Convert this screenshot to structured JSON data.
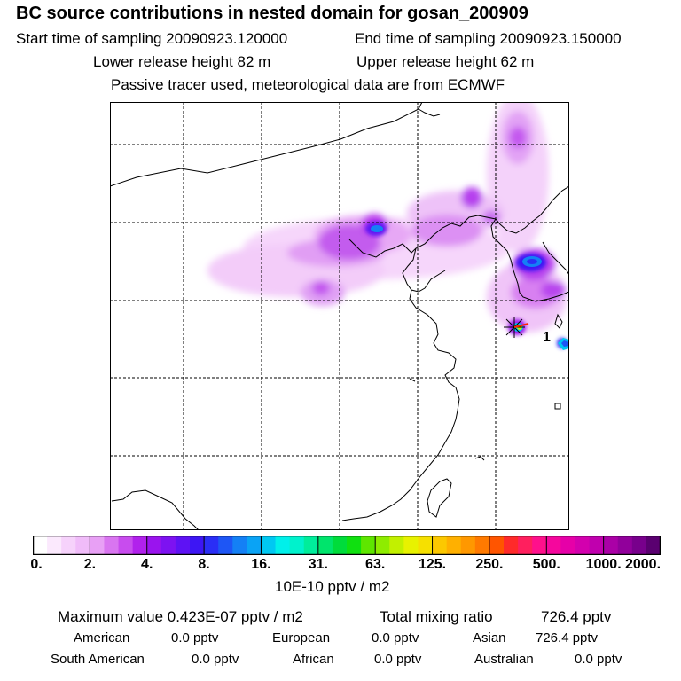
{
  "header": {
    "title": "BC  source contributions in nested domain for gosan_200909",
    "start_label": "Start time of sampling 20090923.120000",
    "end_label": "End time of sampling 20090923.150000",
    "lower_label": "Lower release height   82 m",
    "upper_label": "Upper release height   62 m",
    "note": "Passive tracer used, meteorological data are from ECMWF"
  },
  "map": {
    "receptor_marker": "1"
  },
  "colorbar": {
    "ticks": [
      "0.",
      "2.",
      "4.",
      "8.",
      "16.",
      "31.",
      "63.",
      "125.",
      "250.",
      "500.",
      "1000.",
      "2000."
    ],
    "unit": "10E-10 pptv / m2",
    "colors": [
      "#ffffff",
      "#fbe9fd",
      "#f6d2fb",
      "#f0bcf9",
      "#e8a0f5",
      "#d975f0",
      "#c84cee",
      "#b121ec",
      "#9a14ee",
      "#7d12f1",
      "#5e12f4",
      "#3d16f4",
      "#2a2ef6",
      "#1e56f5",
      "#1480f5",
      "#0aa3f5",
      "#00c8f2",
      "#00f0ea",
      "#00f2cc",
      "#00ed9b",
      "#00e46c",
      "#00dc3b",
      "#10e010",
      "#5ee600",
      "#8eec00",
      "#c2f000",
      "#e8f200",
      "#f6e000",
      "#fcc800",
      "#ffb000",
      "#ff9800",
      "#ff7a00",
      "#ff5500",
      "#ff2a2a",
      "#ff1f5e",
      "#ff108c",
      "#f5079d",
      "#e600a8",
      "#d300ae",
      "#c000ae",
      "#aa00a6",
      "#91009b",
      "#78008c",
      "#5a0070"
    ]
  },
  "stats": {
    "max_label": "Maximum value  0.423E-07 pptv / m2",
    "total_label": "Total mixing ratio",
    "total_value": "726.4 pptv",
    "regions_row1": [
      {
        "name": "American",
        "value": "0.0 pptv"
      },
      {
        "name": "European",
        "value": "0.0 pptv"
      },
      {
        "name": "Asian",
        "value": "726.4 pptv"
      }
    ],
    "regions_row2": [
      {
        "name": "South American",
        "value": "0.0 pptv"
      },
      {
        "name": "African",
        "value": "0.0 pptv"
      },
      {
        "name": "Australian",
        "value": "0.0 pptv"
      }
    ]
  }
}
